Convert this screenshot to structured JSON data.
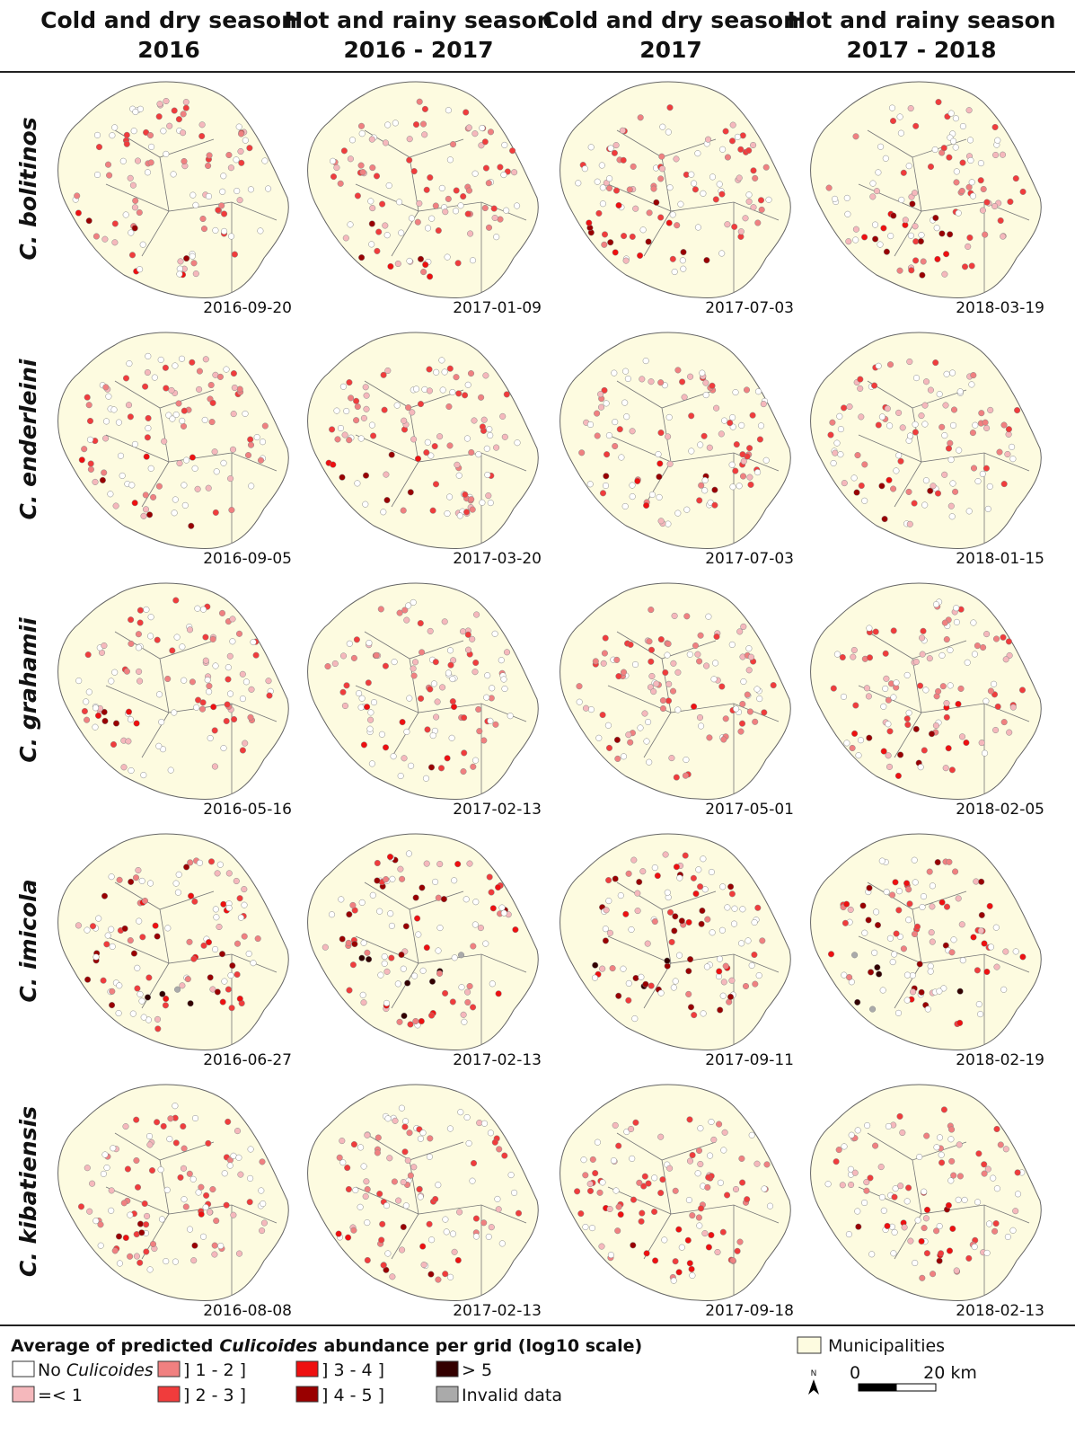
{
  "header": {
    "columns": [
      {
        "line1": "Cold and dry season",
        "line2": "2016"
      },
      {
        "line1": "Hot and rainy season",
        "line2": "2016 - 2017"
      },
      {
        "line1": "Cold and dry season",
        "line2": "2017"
      },
      {
        "line1": "Hot and rainy season",
        "line2": "2017 - 2018"
      }
    ]
  },
  "rows": [
    {
      "species": "C. bolitinos",
      "dates": [
        "2016-09-20",
        "2017-01-09",
        "2017-07-03",
        "2018-03-19"
      ]
    },
    {
      "species": "C. enderleini",
      "dates": [
        "2016-09-05",
        "2017-03-20",
        "2017-07-03",
        "2018-01-15"
      ]
    },
    {
      "species": "C. grahamii",
      "dates": [
        "2016-05-16",
        "2017-02-13",
        "2017-05-01",
        "2018-02-05"
      ]
    },
    {
      "species": "C. imicola",
      "dates": [
        "2016-06-27",
        "2017-02-13",
        "2017-09-11",
        "2018-02-19"
      ]
    },
    {
      "species": "C. kibatiensis",
      "dates": [
        "2016-08-08",
        "2017-02-13",
        "2017-09-18",
        "2018-02-13"
      ]
    }
  ],
  "legend": {
    "title": {
      "before": "Average of predicted",
      "italic": "Culicoides",
      "after": "abundance per grid (log10 scale)"
    },
    "items": [
      {
        "prefix": "No",
        "italic": "Culicoides",
        "color": "#ffffff"
      },
      {
        "label": "=< 1",
        "color": "#f5b8bc"
      },
      {
        "label": "] 1 - 2 ]",
        "color": "#f08080"
      },
      {
        "label": "] 2 - 3 ]",
        "color": "#f03c3c"
      },
      {
        "label": "] 3 - 4 ]",
        "color": "#ee1010"
      },
      {
        "label": "] 4 - 5 ]",
        "color": "#990000"
      },
      {
        "label": "> 5",
        "color": "#330000"
      },
      {
        "label": "Invalid data",
        "color": "#aaaaaa"
      }
    ],
    "municipalities": {
      "label": "Municipalities",
      "color": "#fdfbe0"
    },
    "north": "N",
    "scale_start": "0",
    "scale_end": "20 km"
  }
}
